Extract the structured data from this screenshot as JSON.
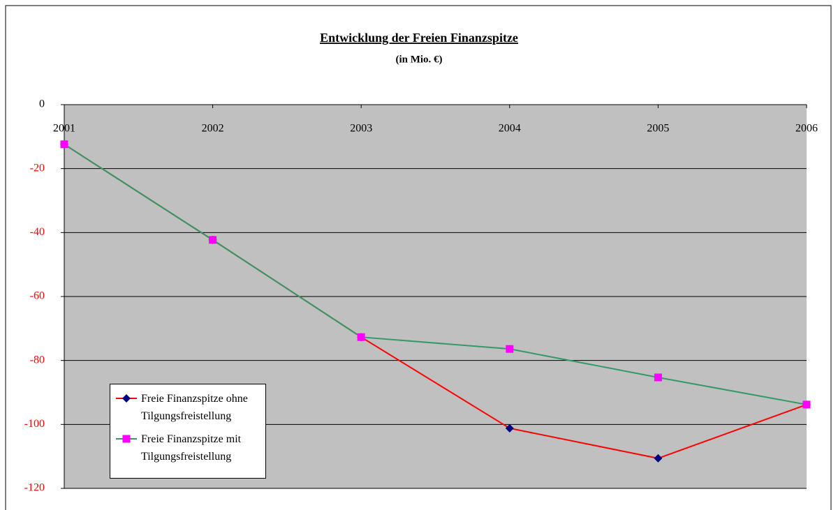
{
  "chart_data": {
    "type": "line",
    "title": "Entwicklung der Freien Finanzspitze",
    "subtitle": "(in Mio. €)",
    "categories": [
      "2001",
      "2002",
      "2003",
      "2004",
      "2005",
      "2006"
    ],
    "series": [
      {
        "name": "Freie Finanzspitze ohne Tilgungsfreistellung",
        "color": "#ff0000",
        "marker_color": "#000080",
        "marker": "diamond",
        "values": [
          -12.4,
          -42.3,
          -72.7,
          -101.2,
          -110.6,
          -93.8
        ]
      },
      {
        "name": "Freie Finanzspitze mit Tilgungsfreistellung",
        "color": "#339966",
        "marker_color": "#ff00ff",
        "marker": "square",
        "values": [
          -12.4,
          -42.3,
          -72.7,
          -76.4,
          -85.3,
          -93.8
        ]
      }
    ],
    "ylim": [
      -120,
      0
    ],
    "yticks": [
      -120,
      -100,
      -80,
      -60,
      -40,
      -20,
      0
    ],
    "grid": true,
    "plot_background": "#c0c0c0"
  }
}
